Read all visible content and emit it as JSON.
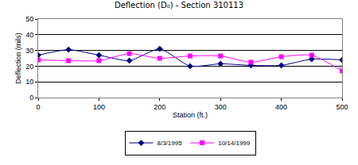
{
  "chart_data": {
    "type": "line",
    "title": "Deflection (D₀) - Section 310113",
    "x_label": "Station (ft.)",
    "y_label": "Deflection (mils)",
    "x": [
      0,
      50,
      100,
      150,
      200,
      250,
      300,
      350,
      400,
      450,
      500
    ],
    "series": [
      {
        "name": "8/3/1995",
        "color": "#000080",
        "marker": "diamond",
        "values": [
          27,
          30.5,
          27,
          23.5,
          31,
          20,
          21.5,
          20.5,
          20.5,
          24.5,
          24
        ]
      },
      {
        "name": "10/14/1999",
        "color": "#ff00ff",
        "marker": "square",
        "values": [
          24,
          23.5,
          23.5,
          28,
          25,
          26.5,
          26.5,
          22.5,
          26,
          27,
          17
        ]
      }
    ],
    "xlim": [
      0,
      500
    ],
    "xticks": [
      0,
      100,
      200,
      300,
      400,
      500
    ],
    "ylim": [
      0,
      50
    ],
    "yticks": [
      0,
      10,
      20,
      30,
      40,
      50
    ],
    "grid": true,
    "legend": "bottom"
  }
}
